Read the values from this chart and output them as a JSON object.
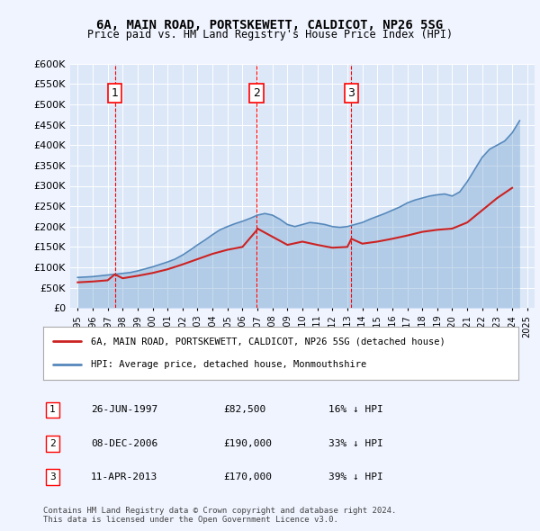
{
  "title": "6A, MAIN ROAD, PORTSKEWETT, CALDICOT, NP26 5SG",
  "subtitle": "Price paid vs. HM Land Registry's House Price Index (HPI)",
  "background_color": "#f0f4ff",
  "plot_bg_color": "#dce8f8",
  "ylim": [
    0,
    600000
  ],
  "yticks": [
    0,
    50000,
    100000,
    150000,
    200000,
    250000,
    300000,
    350000,
    400000,
    450000,
    500000,
    550000,
    600000
  ],
  "ytick_labels": [
    "£0",
    "£50K",
    "£100K",
    "£150K",
    "£200K",
    "£250K",
    "£300K",
    "£350K",
    "£400K",
    "£450K",
    "£500K",
    "£550K",
    "£600K"
  ],
  "legend_label_red": "6A, MAIN ROAD, PORTSKEWETT, CALDICOT, NP26 5SG (detached house)",
  "legend_label_blue": "HPI: Average price, detached house, Monmouthshire",
  "footer_line1": "Contains HM Land Registry data © Crown copyright and database right 2024.",
  "footer_line2": "This data is licensed under the Open Government Licence v3.0.",
  "transactions": [
    {
      "label": "1",
      "date": "26-JUN-1997",
      "price": 82500,
      "hpi_diff": "16% ↓ HPI",
      "x": 1997.48
    },
    {
      "label": "2",
      "date": "08-DEC-2006",
      "price": 190000,
      "hpi_diff": "33% ↓ HPI",
      "x": 2006.93
    },
    {
      "label": "3",
      "date": "11-APR-2013",
      "price": 170000,
      "hpi_diff": "39% ↓ HPI",
      "x": 2013.27
    }
  ],
  "hpi_years": [
    1995,
    1995.5,
    1996,
    1996.5,
    1997,
    1997.5,
    1998,
    1998.5,
    1999,
    1999.5,
    2000,
    2000.5,
    2001,
    2001.5,
    2002,
    2002.5,
    2003,
    2003.5,
    2004,
    2004.5,
    2005,
    2005.5,
    2006,
    2006.5,
    2007,
    2007.5,
    2008,
    2008.5,
    2009,
    2009.5,
    2010,
    2010.5,
    2011,
    2011.5,
    2012,
    2012.5,
    2013,
    2013.5,
    2014,
    2014.5,
    2015,
    2015.5,
    2016,
    2016.5,
    2017,
    2017.5,
    2018,
    2018.5,
    2019,
    2019.5,
    2020,
    2020.5,
    2021,
    2021.5,
    2022,
    2022.5,
    2023,
    2023.5,
    2024,
    2024.5
  ],
  "hpi_values": [
    75000,
    76000,
    77000,
    79000,
    81000,
    83000,
    85000,
    87000,
    91000,
    96000,
    101000,
    107000,
    113000,
    120000,
    130000,
    142000,
    155000,
    167000,
    180000,
    192000,
    200000,
    207000,
    213000,
    220000,
    228000,
    232000,
    228000,
    218000,
    205000,
    200000,
    205000,
    210000,
    208000,
    205000,
    200000,
    198000,
    200000,
    205000,
    210000,
    218000,
    225000,
    232000,
    240000,
    248000,
    258000,
    265000,
    270000,
    275000,
    278000,
    280000,
    275000,
    285000,
    310000,
    340000,
    370000,
    390000,
    400000,
    410000,
    430000,
    460000
  ],
  "red_years": [
    1995,
    1996,
    1997,
    1997.48,
    1998,
    1999,
    2000,
    2001,
    2002,
    2003,
    2004,
    2005,
    2006,
    2006.93,
    2007,
    2008,
    2009,
    2010,
    2011,
    2012,
    2013,
    2013.27,
    2014,
    2015,
    2016,
    2017,
    2018,
    2019,
    2020,
    2021,
    2022,
    2023,
    2024
  ],
  "red_values": [
    63000,
    65000,
    68000,
    82500,
    73000,
    79000,
    86000,
    95000,
    107000,
    120000,
    133000,
    143000,
    150000,
    190000,
    195000,
    175000,
    155000,
    163000,
    155000,
    148000,
    150000,
    170000,
    158000,
    163000,
    170000,
    178000,
    187000,
    192000,
    195000,
    210000,
    240000,
    270000,
    295000
  ]
}
